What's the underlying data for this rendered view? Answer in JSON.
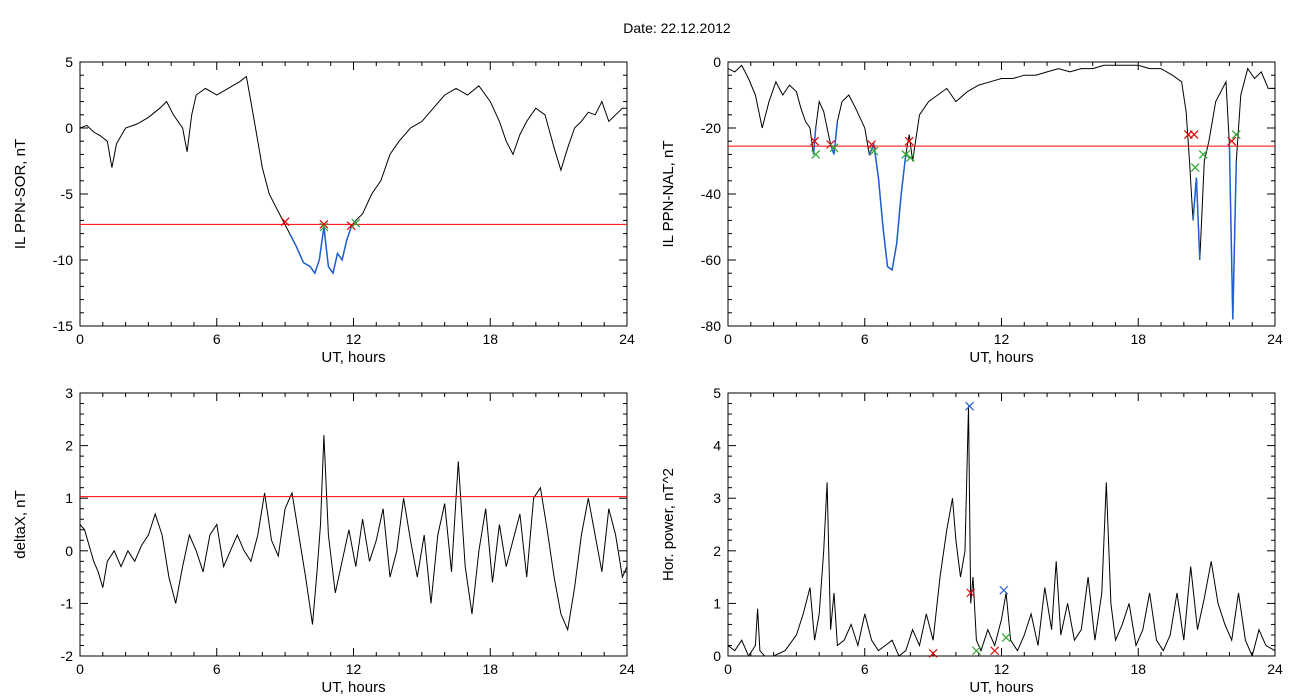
{
  "figure": {
    "title": "Date:  22.12.2012"
  },
  "colors": {
    "trace": "#000000",
    "threshold": "#ff0000",
    "event": "#1f5fd0",
    "mark_red": "#e00000",
    "mark_green": "#2ea52e",
    "mark_blue": "#1f5fd0"
  },
  "chart_data": [
    {
      "type": "line",
      "xlabel": "UT, hours",
      "ylabel": "IL PPN-SOR, nT",
      "xlim": [
        0,
        24
      ],
      "ylim": [
        -15,
        5
      ],
      "xticks": [
        0,
        6,
        12,
        18,
        24
      ],
      "yticks": [
        -15,
        -10,
        -5,
        0,
        5
      ],
      "threshold": -7.3,
      "event_segments": [
        [
          9.0,
          12.2
        ]
      ],
      "series": [
        {
          "x": [
            0,
            0.3,
            0.6,
            0.9,
            1.2,
            1.4,
            1.6,
            2.0,
            2.5,
            3.0,
            3.5,
            3.8,
            4.1,
            4.5,
            4.7,
            4.9,
            5.1,
            5.5,
            6.0,
            6.5,
            7.0,
            7.3,
            7.5,
            7.8,
            8.0,
            8.3,
            8.6,
            8.9,
            9.2,
            9.5,
            9.8,
            10.1,
            10.3,
            10.5,
            10.7,
            10.9,
            11.1,
            11.3,
            11.5,
            11.7,
            11.9,
            12.1,
            12.4,
            12.8,
            13.2,
            13.6,
            14.0,
            14.5,
            15.0,
            15.5,
            16.0,
            16.5,
            17.0,
            17.5,
            18.0,
            18.4,
            18.7,
            19.0,
            19.3,
            19.6,
            20.0,
            20.4,
            20.8,
            21.1,
            21.4,
            21.7,
            22.0,
            22.3,
            22.6,
            22.9,
            23.2,
            23.5,
            23.8,
            24
          ],
          "y": [
            0,
            0.2,
            -0.3,
            -0.6,
            -1.0,
            -3.0,
            -1.2,
            0.0,
            0.3,
            0.8,
            1.5,
            2.0,
            1.0,
            0.0,
            -1.8,
            1.0,
            2.5,
            3.0,
            2.5,
            3.0,
            3.5,
            3.9,
            2.0,
            -1.0,
            -3.0,
            -5.0,
            -6.0,
            -7.0,
            -8.0,
            -9.0,
            -10.2,
            -10.5,
            -11.0,
            -10.0,
            -7.5,
            -10.5,
            -11.0,
            -9.5,
            -10.0,
            -8.5,
            -7.5,
            -7.0,
            -6.5,
            -5.0,
            -4.0,
            -2.0,
            -1.0,
            0.0,
            0.5,
            1.5,
            2.5,
            3.0,
            2.5,
            3.2,
            2.0,
            0.5,
            -1.0,
            -2.0,
            -0.5,
            0.5,
            1.5,
            1.0,
            -1.5,
            -3.2,
            -1.5,
            0.0,
            0.5,
            1.2,
            1.0,
            2.0,
            0.5,
            1.0,
            1.5,
            1.5
          ]
        }
      ],
      "markers": [
        {
          "x": 9.0,
          "y": -7.1,
          "color": "red"
        },
        {
          "x": 10.7,
          "y": -7.3,
          "color": "red"
        },
        {
          "x": 10.7,
          "y": -7.5,
          "color": "green"
        },
        {
          "x": 11.9,
          "y": -7.4,
          "color": "red"
        },
        {
          "x": 12.1,
          "y": -7.2,
          "color": "green"
        }
      ]
    },
    {
      "type": "line",
      "xlabel": "UT, hours",
      "ylabel": "IL PPN-NAL, nT",
      "xlim": [
        0,
        24
      ],
      "ylim": [
        -80,
        0
      ],
      "xticks": [
        0,
        6,
        12,
        18,
        24
      ],
      "yticks": [
        -80,
        -60,
        -40,
        -20,
        0
      ],
      "threshold": -25.5,
      "event_segments": [
        [
          3.7,
          3.9
        ],
        [
          4.4,
          4.8
        ],
        [
          6.2,
          7.9
        ],
        [
          20.3,
          20.8
        ],
        [
          21.9,
          22.4
        ]
      ],
      "series": [
        {
          "x": [
            0,
            0.3,
            0.6,
            0.9,
            1.2,
            1.5,
            1.8,
            2.1,
            2.4,
            2.7,
            3.0,
            3.2,
            3.4,
            3.6,
            3.75,
            3.85,
            4.0,
            4.2,
            4.35,
            4.5,
            4.65,
            4.8,
            5.0,
            5.3,
            5.6,
            6.0,
            6.2,
            6.4,
            6.6,
            6.8,
            7.0,
            7.2,
            7.4,
            7.6,
            7.8,
            7.95,
            8.1,
            8.4,
            8.8,
            9.2,
            9.6,
            10.0,
            10.5,
            11.0,
            11.5,
            12.0,
            12.5,
            13.0,
            13.5,
            14.0,
            14.5,
            15.0,
            15.5,
            16.0,
            16.5,
            17.0,
            17.5,
            18.0,
            18.5,
            19.0,
            19.5,
            19.9,
            20.1,
            20.25,
            20.4,
            20.55,
            20.7,
            20.9,
            21.1,
            21.4,
            21.7,
            21.85,
            22.0,
            22.15,
            22.3,
            22.5,
            22.8,
            23.1,
            23.4,
            23.7,
            24
          ],
          "y": [
            -2,
            -3,
            -1,
            -5,
            -10,
            -20,
            -12,
            -6,
            -10,
            -7,
            -9,
            -14,
            -18,
            -20,
            -28,
            -20,
            -12,
            -15,
            -20,
            -25,
            -28,
            -18,
            -12,
            -10,
            -14,
            -20,
            -28,
            -25,
            -35,
            -50,
            -62,
            -63,
            -55,
            -40,
            -28,
            -22,
            -30,
            -16,
            -12,
            -10,
            -8,
            -12,
            -9,
            -7,
            -6,
            -5,
            -5,
            -4,
            -4,
            -3,
            -2,
            -3,
            -2,
            -2,
            -1,
            -1,
            -1,
            -1,
            -2,
            -2,
            -4,
            -6,
            -15,
            -30,
            -48,
            -35,
            -60,
            -30,
            -24,
            -12,
            -8,
            -6,
            -25,
            -78,
            -30,
            -10,
            -2,
            -5,
            -3,
            -8,
            -8
          ]
        }
      ],
      "markers": [
        {
          "x": 3.8,
          "y": -24,
          "color": "red"
        },
        {
          "x": 3.85,
          "y": -28,
          "color": "green"
        },
        {
          "x": 4.5,
          "y": -25,
          "color": "red"
        },
        {
          "x": 4.65,
          "y": -26,
          "color": "green"
        },
        {
          "x": 6.3,
          "y": -25,
          "color": "red"
        },
        {
          "x": 6.4,
          "y": -27,
          "color": "green"
        },
        {
          "x": 7.8,
          "y": -28,
          "color": "green"
        },
        {
          "x": 7.95,
          "y": -24,
          "color": "red"
        },
        {
          "x": 8.0,
          "y": -29,
          "color": "green"
        },
        {
          "x": 20.2,
          "y": -22,
          "color": "red"
        },
        {
          "x": 20.45,
          "y": -22,
          "color": "red"
        },
        {
          "x": 20.5,
          "y": -32,
          "color": "green"
        },
        {
          "x": 20.85,
          "y": -28,
          "color": "green"
        },
        {
          "x": 22.1,
          "y": -24,
          "color": "red"
        },
        {
          "x": 22.3,
          "y": -22,
          "color": "green"
        }
      ]
    },
    {
      "type": "line",
      "xlabel": "UT, hours",
      "ylabel": "deltaX, nT",
      "xlim": [
        0,
        24
      ],
      "ylim": [
        -2,
        3
      ],
      "xticks": [
        0,
        6,
        12,
        18,
        24
      ],
      "yticks": [
        -2,
        -1,
        0,
        1,
        2,
        3
      ],
      "threshold": 1.03,
      "event_segments": [],
      "series": [
        {
          "x": [
            0,
            0.2,
            0.4,
            0.6,
            0.8,
            1.0,
            1.2,
            1.5,
            1.8,
            2.1,
            2.4,
            2.7,
            3.0,
            3.3,
            3.6,
            3.9,
            4.2,
            4.5,
            4.8,
            5.1,
            5.4,
            5.7,
            6.0,
            6.3,
            6.6,
            6.9,
            7.2,
            7.5,
            7.8,
            8.1,
            8.4,
            8.7,
            9.0,
            9.3,
            9.6,
            9.9,
            10.2,
            10.4,
            10.55,
            10.7,
            10.9,
            11.2,
            11.5,
            11.8,
            12.1,
            12.4,
            12.7,
            13.0,
            13.3,
            13.6,
            13.9,
            14.2,
            14.5,
            14.8,
            15.1,
            15.4,
            15.7,
            16.0,
            16.3,
            16.6,
            16.9,
            17.2,
            17.5,
            17.8,
            18.1,
            18.4,
            18.7,
            19.0,
            19.3,
            19.6,
            19.9,
            20.2,
            20.5,
            20.8,
            21.1,
            21.4,
            21.7,
            22.0,
            22.3,
            22.6,
            22.9,
            23.2,
            23.5,
            23.8,
            24
          ],
          "y": [
            0.5,
            0.4,
            0.1,
            -0.2,
            -0.4,
            -0.7,
            -0.2,
            0.0,
            -0.3,
            0.0,
            -0.2,
            0.1,
            0.3,
            0.7,
            0.3,
            -0.5,
            -1.0,
            -0.3,
            0.3,
            0.0,
            -0.4,
            0.3,
            0.5,
            -0.3,
            0.0,
            0.3,
            0.0,
            -0.2,
            0.3,
            1.1,
            0.2,
            -0.1,
            0.8,
            1.1,
            0.3,
            -0.5,
            -1.4,
            -0.4,
            0.5,
            2.2,
            0.3,
            -0.8,
            -0.2,
            0.4,
            -0.3,
            0.6,
            -0.2,
            0.2,
            0.8,
            -0.5,
            0.0,
            1.0,
            0.2,
            -0.5,
            0.3,
            -1.0,
            0.3,
            0.9,
            -0.4,
            1.7,
            -0.3,
            -1.2,
            0.0,
            0.8,
            -0.6,
            0.5,
            -0.3,
            0.2,
            0.7,
            -0.5,
            1.0,
            1.2,
            0.4,
            -0.5,
            -1.2,
            -1.5,
            -0.7,
            0.3,
            1.0,
            0.3,
            -0.4,
            0.8,
            0.3,
            -0.5,
            -0.3
          ]
        }
      ],
      "markers": []
    },
    {
      "type": "line",
      "xlabel": "UT, hours",
      "ylabel": "Hor. power, nT^2",
      "xlim": [
        0,
        24
      ],
      "ylim": [
        0,
        5
      ],
      "xticks": [
        0,
        6,
        12,
        18,
        24
      ],
      "yticks": [
        0,
        1,
        2,
        3,
        4,
        5
      ],
      "threshold": null,
      "event_segments": [],
      "series": [
        {
          "x": [
            0,
            0.3,
            0.6,
            0.9,
            1.2,
            1.3,
            1.4,
            1.6,
            2.0,
            2.5,
            3.0,
            3.3,
            3.6,
            3.8,
            4.0,
            4.2,
            4.35,
            4.5,
            4.65,
            4.8,
            5.1,
            5.4,
            5.7,
            6.0,
            6.3,
            6.6,
            6.9,
            7.2,
            7.5,
            7.8,
            8.1,
            8.4,
            8.7,
            9.0,
            9.3,
            9.6,
            9.85,
            10.0,
            10.2,
            10.4,
            10.55,
            10.65,
            10.75,
            10.9,
            11.1,
            11.4,
            11.7,
            12.0,
            12.2,
            12.4,
            12.7,
            13.0,
            13.3,
            13.6,
            13.9,
            14.2,
            14.4,
            14.6,
            14.9,
            15.2,
            15.5,
            15.8,
            16.1,
            16.4,
            16.6,
            16.8,
            17.0,
            17.3,
            17.6,
            17.9,
            18.2,
            18.5,
            18.8,
            19.1,
            19.4,
            19.7,
            20.0,
            20.3,
            20.6,
            20.9,
            21.2,
            21.5,
            21.8,
            22.1,
            22.4,
            22.7,
            23.0,
            23.3,
            23.6,
            24
          ],
          "y": [
            0.2,
            0.1,
            0.3,
            0.0,
            0.2,
            0.9,
            0.1,
            0.0,
            0.0,
            0.1,
            0.4,
            0.8,
            1.3,
            0.3,
            0.8,
            2.0,
            3.3,
            0.5,
            1.2,
            0.2,
            0.3,
            0.6,
            0.2,
            0.8,
            0.3,
            0.1,
            0.2,
            0.3,
            0.0,
            0.1,
            0.5,
            0.2,
            0.8,
            0.3,
            1.5,
            2.4,
            3.0,
            2.2,
            1.5,
            2.0,
            4.75,
            1.0,
            1.5,
            0.3,
            0.1,
            0.5,
            0.2,
            0.7,
            1.2,
            0.3,
            0.1,
            0.4,
            0.8,
            0.2,
            1.3,
            0.5,
            1.8,
            0.4,
            1.0,
            0.3,
            0.5,
            1.5,
            0.3,
            1.2,
            3.3,
            1.0,
            0.3,
            0.6,
            1.0,
            0.2,
            0.5,
            1.2,
            0.3,
            0.1,
            0.4,
            1.2,
            0.3,
            1.7,
            0.5,
            1.1,
            1.8,
            1.0,
            0.6,
            0.3,
            1.2,
            0.3,
            0.0,
            0.5,
            0.2,
            0.1
          ]
        }
      ],
      "markers": [
        {
          "x": 9.0,
          "y": 0.05,
          "color": "red"
        },
        {
          "x": 10.6,
          "y": 4.75,
          "color": "blue"
        },
        {
          "x": 10.65,
          "y": 1.2,
          "color": "red"
        },
        {
          "x": 10.9,
          "y": 0.1,
          "color": "green"
        },
        {
          "x": 11.7,
          "y": 0.1,
          "color": "red"
        },
        {
          "x": 12.1,
          "y": 1.25,
          "color": "blue"
        },
        {
          "x": 12.2,
          "y": 0.35,
          "color": "green"
        }
      ]
    }
  ]
}
